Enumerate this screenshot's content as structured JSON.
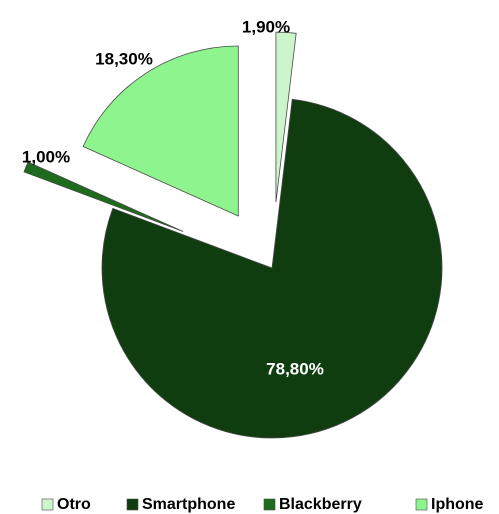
{
  "chart_data": {
    "type": "pie",
    "exploded": true,
    "categories": [
      "Otro",
      "Smartphone",
      "Blackberry",
      "Iphone"
    ],
    "values": [
      1.9,
      78.8,
      1.0,
      18.3
    ],
    "labels": [
      "1,90%",
      "78,80%",
      "1,00%",
      "18,30%"
    ],
    "colors": [
      "#ccf5cc",
      "#0f3d0f",
      "#1e6b1e",
      "#8ef58e"
    ],
    "label_colors": [
      "#000000",
      "#ffffff",
      "#000000",
      "#000000"
    ],
    "legend": {
      "position": "bottom",
      "entries": [
        "Otro",
        "Smartphone",
        "Blackberry",
        "Iphone"
      ]
    }
  }
}
